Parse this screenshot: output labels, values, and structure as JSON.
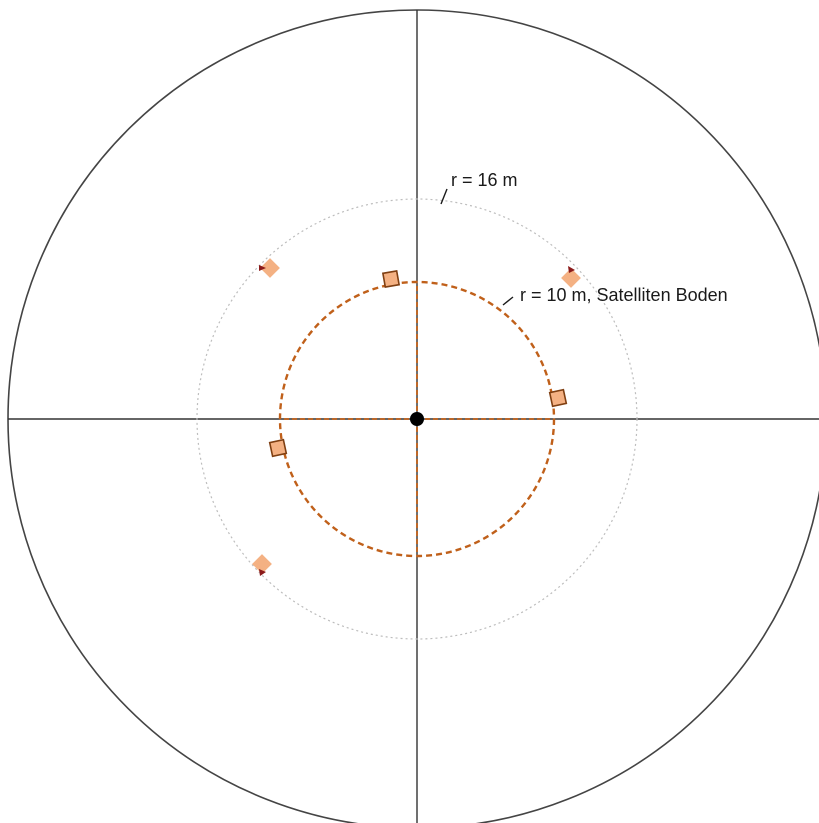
{
  "labels": {
    "radius_16": "r = 16 m",
    "radius_10": "r = 10 m, Satelliten Boden"
  },
  "colors": {
    "axis": "#333333",
    "outer_circle": "#444444",
    "dotted_circle": "#bdbdbd",
    "dashed_circle": "#c0601a",
    "floor_marker_fill": "#f4b183",
    "floor_marker_stroke": "#7f3f12",
    "diamond_fill": "#f4b183",
    "arrow_fill": "#8b1a1a",
    "center": "#000000"
  }
}
